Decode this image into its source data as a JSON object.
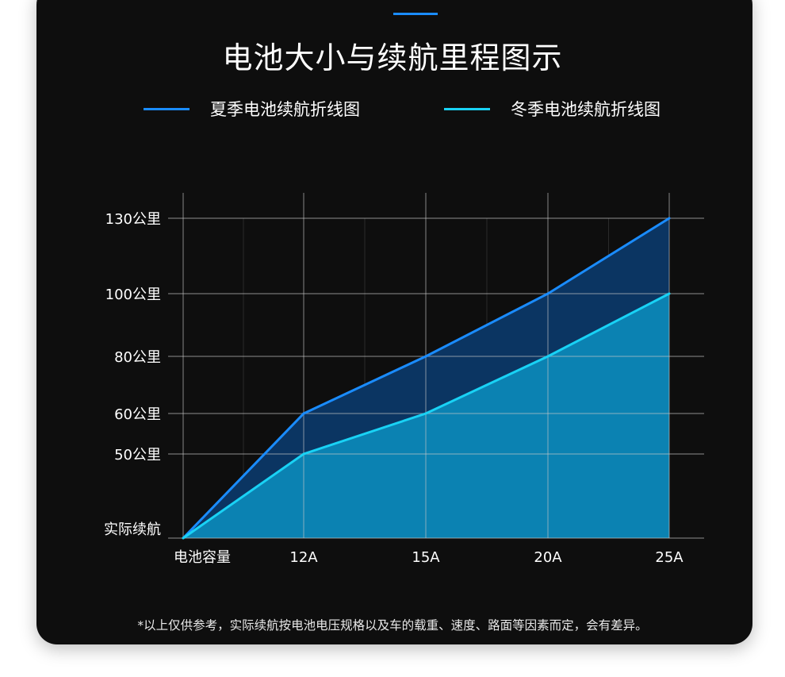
{
  "header": {
    "title": "电池大小与续航里程图示"
  },
  "colors": {
    "summer": "#1a8cff",
    "winter": "#19d2f5",
    "summer_fill": "#0b3562",
    "winter_fill": "#0b82b2",
    "accent": "#1a8cff"
  },
  "chart_data": {
    "type": "area",
    "title": "电池大小与续航里程图示",
    "xlabel": "电池容量",
    "ylabel": "实际续航",
    "categories": [
      "电池容量",
      "12A",
      "15A",
      "20A",
      "25A"
    ],
    "y_ticks": [
      {
        "value": 130,
        "label": "130公里"
      },
      {
        "value": 100,
        "label": "100公里"
      },
      {
        "value": 80,
        "label": "80公里"
      },
      {
        "value": 60,
        "label": "60公里"
      },
      {
        "value": 50,
        "label": "50公里"
      },
      {
        "value": 0,
        "label": "实际续航"
      }
    ],
    "series": [
      {
        "name": "夏季电池续航折线图",
        "values": [
          0,
          60,
          80,
          100,
          130
        ]
      },
      {
        "name": "冬季电池续航折线图",
        "values": [
          0,
          50,
          60,
          80,
          100
        ]
      }
    ],
    "grid": true,
    "legend_position": "top"
  },
  "footnote": "*以上仅供参考，实际续航按电池电压规格以及车的载重、速度、路面等因素而定，会有差异。"
}
